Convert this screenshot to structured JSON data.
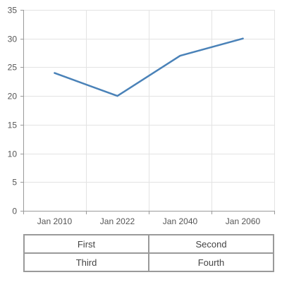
{
  "chart_data": {
    "type": "line",
    "categories": [
      "Jan 2010",
      "Jan 2022",
      "Jan 2040",
      "Jan 2060"
    ],
    "series": [
      {
        "values": [
          24,
          20,
          27,
          30
        ],
        "color": "#4a82b8"
      }
    ],
    "ylim": [
      0,
      35
    ],
    "yticks": [
      0,
      5,
      10,
      15,
      20,
      25,
      30,
      35
    ],
    "grid": true,
    "legend": "none"
  },
  "buttons": [
    {
      "label": "First"
    },
    {
      "label": "Second"
    },
    {
      "label": "Third"
    },
    {
      "label": "Fourth"
    }
  ]
}
